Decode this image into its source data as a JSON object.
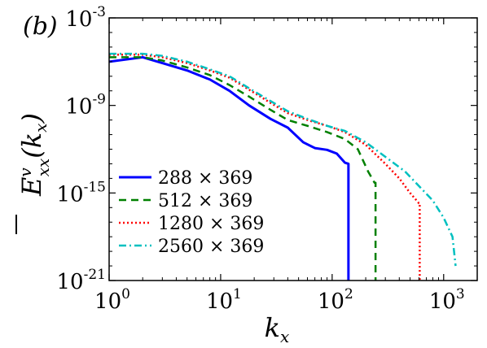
{
  "chart_data": {
    "type": "line",
    "panel_label": "(b)",
    "xlabel": "k_x",
    "ylabel": "E_xx^v(k_x)",
    "x_scale": "log",
    "y_scale": "log",
    "xlim": [
      1,
      2000
    ],
    "ylim": [
      1e-21,
      0.001
    ],
    "x_ticks": [
      {
        "value": 1,
        "base": "10",
        "exp": "0"
      },
      {
        "value": 10,
        "base": "10",
        "exp": "1"
      },
      {
        "value": 100,
        "base": "10",
        "exp": "2"
      },
      {
        "value": 1000,
        "base": "10",
        "exp": "3"
      }
    ],
    "y_ticks": [
      {
        "value": 1e-21,
        "base": "10",
        "exp": "-21"
      },
      {
        "value": 1e-15,
        "base": "10",
        "exp": "-15"
      },
      {
        "value": 1e-09,
        "base": "10",
        "exp": "-9"
      },
      {
        "value": 0.001,
        "base": "10",
        "exp": "-3"
      }
    ],
    "grid": false,
    "legend_position": "bottom-left",
    "series": [
      {
        "name": "288 × 369",
        "color": "#0000ff",
        "dash": "solid",
        "x": [
          1,
          2,
          3,
          5,
          8,
          12,
          18,
          28,
          40,
          55,
          70,
          90,
          110,
          130,
          140,
          140
        ],
        "y": [
          1e-06,
          2e-06,
          8e-07,
          2.5e-07,
          6e-08,
          1e-08,
          1e-09,
          1.2e-10,
          3e-11,
          3e-12,
          1.2e-12,
          9e-13,
          5e-13,
          1.2e-13,
          1e-13,
          1e-21
        ]
      },
      {
        "name": "512 × 369",
        "color": "#008000",
        "dash": "dashed",
        "x": [
          1,
          2,
          3,
          5,
          8,
          12,
          18,
          28,
          40,
          60,
          90,
          130,
          170,
          210,
          240,
          245,
          245
        ],
        "y": [
          2e-06,
          2e-06,
          1.2e-06,
          4e-07,
          1.2e-07,
          2.5e-08,
          4e-09,
          5e-10,
          1e-10,
          4e-11,
          1.5e-11,
          5e-12,
          1e-12,
          3e-14,
          5e-15,
          5e-15,
          1e-21
        ]
      },
      {
        "name": "1280 × 369",
        "color": "#ff0000",
        "dash": "dotted",
        "x": [
          1,
          2,
          3,
          5,
          8,
          12,
          18,
          28,
          40,
          60,
          90,
          130,
          200,
          300,
          400,
          500,
          600,
          610,
          610
        ],
        "y": [
          3e-06,
          3e-06,
          2e-06,
          8e-07,
          2.5e-07,
          8e-08,
          1.2e-08,
          1.5e-09,
          3e-10,
          1e-10,
          4e-11,
          1.5e-11,
          2e-12,
          1e-13,
          1e-14,
          1e-15,
          2e-16,
          2e-16,
          1e-21
        ]
      },
      {
        "name": "2560 × 369",
        "color": "#00c0c0",
        "dash": "dashdot",
        "x": [
          1,
          2,
          3,
          5,
          8,
          12,
          18,
          28,
          40,
          60,
          90,
          130,
          200,
          300,
          450,
          600,
          800,
          1000,
          1200,
          1280
        ],
        "y": [
          3.5e-06,
          3.5e-06,
          2.5e-06,
          1e-06,
          3e-07,
          1e-07,
          1.5e-08,
          2e-09,
          4e-10,
          1.2e-10,
          4e-11,
          1.8e-11,
          3e-12,
          3e-13,
          3e-14,
          3e-15,
          3e-16,
          2e-17,
          1e-18,
          1e-20
        ]
      }
    ]
  }
}
